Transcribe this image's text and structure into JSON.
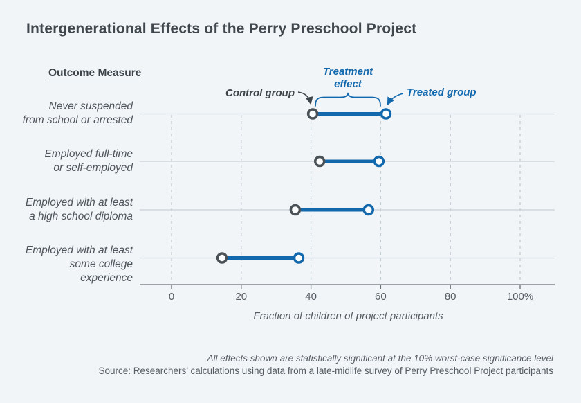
{
  "page": {
    "title": "Intergenerational Effects of the Perry Preschool Project"
  },
  "chart_data": {
    "type": "scatter",
    "variant": "dumbbell",
    "title": "Intergenerational Effects of the Perry Preschool Project",
    "row_header": "Outcome Measure",
    "categories": [
      "Never suspended\nfrom school or arrested",
      "Employed full-time\nor self-employed",
      "Employed with at least\na high school diploma",
      "Employed with at least\nsome college experience"
    ],
    "series": [
      {
        "name": "Control group",
        "values": [
          40.5,
          42.5,
          35.5,
          14.5
        ],
        "color": "#4b5257"
      },
      {
        "name": "Treated group",
        "values": [
          61.5,
          59.5,
          56.5,
          36.5
        ],
        "color": "#1268ad"
      }
    ],
    "xlim": [
      0,
      100
    ],
    "x_ticks": [
      0,
      20,
      40,
      60,
      80,
      100
    ],
    "x_tick_labels": [
      "0",
      "20",
      "40",
      "60",
      "80",
      "100%"
    ],
    "xlabel": "Fraction of children of project participants",
    "grid": "vertical-dashed",
    "legend_position": "inline-annotations",
    "annotations": {
      "control_label": "Control group",
      "treatment_effect_label": "Treatment\neffect",
      "treated_label": "Treated group"
    },
    "notes": {
      "significance": "All effects shown are statistically significant at the 10% worst-case significance level",
      "source": "Source: Researchers’ calculations using data from a late-midlife survey of Perry Preschool Project participants"
    },
    "colors": {
      "background": "#f1f5f8",
      "treated_blue": "#1268ad",
      "control_gray": "#4b5257",
      "row_line": "#c9d1d8",
      "grid_line": "#c4cdd4",
      "axis_line": "#697076"
    }
  }
}
